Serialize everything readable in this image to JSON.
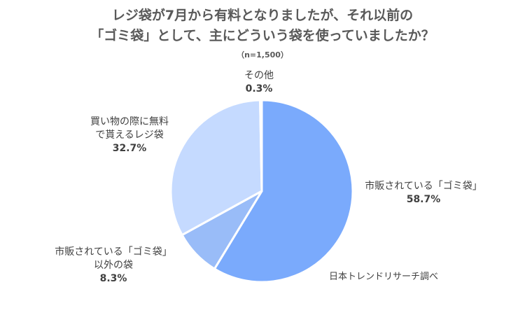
{
  "title_line1": "レジ袋が7月から有料となりましたが、それ以前の",
  "title_line2": "「ゴミ袋」として、主にどういう袋を使っていましたか？",
  "subtitle": "（n=1,500）",
  "source": "日本トレンドリサーチ調べ",
  "chart_data": {
    "type": "pie",
    "title": "レジ袋が7月から有料となりましたが、それ以前の「ゴミ袋」として、主にどういう袋を使っていましたか？",
    "subtitle": "（n=1,500）",
    "slices": [
      {
        "label": "市販されている「ゴミ袋」",
        "value": 58.7,
        "pct_label": "58.7%",
        "color": "#7aaafc"
      },
      {
        "label_line1": "市販されている「ゴミ袋」",
        "label_line2": "以外の袋",
        "value": 8.3,
        "pct_label": "8.3%",
        "color": "#99bcf8"
      },
      {
        "label_line1": "買い物の際に無料",
        "label_line2": "で貰えるレジ袋",
        "value": 32.7,
        "pct_label": "32.7%",
        "color": "#c5daff"
      },
      {
        "label": "その他",
        "value": 0.3,
        "pct_label": "0.3%",
        "color": "#dbe7fc"
      }
    ]
  }
}
